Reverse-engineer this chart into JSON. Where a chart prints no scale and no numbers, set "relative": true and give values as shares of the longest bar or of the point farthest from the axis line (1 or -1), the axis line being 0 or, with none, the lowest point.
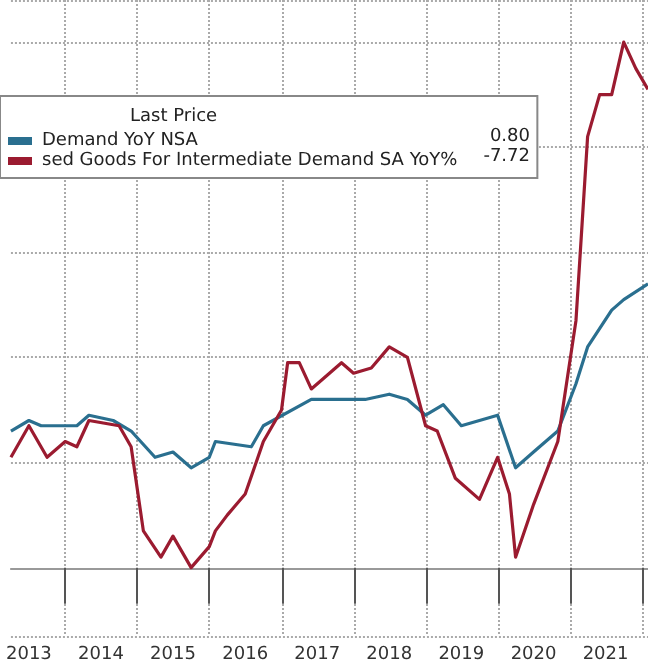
{
  "chart_data": {
    "type": "line",
    "relative": true,
    "legend": "top left",
    "legend_title": "Last Price",
    "grid": true,
    "annotations": [
      "0.80",
      "-7.72"
    ],
    "xlim": [
      "2013-04",
      "2022-02"
    ],
    "xticks": [
      {
        "value": "2013-07",
        "label": "2013"
      },
      {
        "value": "2014-01",
        "label": null
      },
      {
        "value": "2014-07",
        "label": "2014"
      },
      {
        "value": "2015-01",
        "label": null
      },
      {
        "value": "2015-07",
        "label": "2015"
      },
      {
        "value": "2016-01",
        "label": null
      },
      {
        "value": "2016-07",
        "label": "2016"
      },
      {
        "value": "2017-01",
        "label": null
      },
      {
        "value": "2017-07",
        "label": "2017"
      },
      {
        "value": "2018-01",
        "label": null
      },
      {
        "value": "2018-07",
        "label": "2018"
      },
      {
        "value": "2019-01",
        "label": null
      },
      {
        "value": "2019-07",
        "label": "2019"
      },
      {
        "value": "2020-01",
        "label": null
      },
      {
        "value": "2020-07",
        "label": "2020"
      },
      {
        "value": "2021-01",
        "label": null
      },
      {
        "value": "2021-07",
        "label": "2021"
      },
      {
        "value": "2022-01",
        "label": null
      }
    ],
    "series": [
      {
        "name": "Demand YoY NSA",
        "color": "#2a6f8f",
        "x": [
          "2013-04",
          "2013-07",
          "2013-09",
          "2014-03",
          "2014-05",
          "2014-09",
          "2014-12",
          "2015-04",
          "2015-07",
          "2015-10",
          "2016-01",
          "2016-02",
          "2016-08",
          "2016-10",
          "2017-06",
          "2017-11",
          "2018-03",
          "2018-07",
          "2018-10",
          "2019-01",
          "2019-04",
          "2019-07",
          "2020-01",
          "2020-04",
          "2020-07",
          "2020-11",
          "2021-02",
          "2021-04",
          "2021-08",
          "2021-10",
          "2022-02"
        ],
        "values": [
          0.26,
          0.28,
          0.27,
          0.27,
          0.29,
          0.28,
          0.26,
          0.21,
          0.22,
          0.19,
          0.21,
          0.24,
          0.23,
          0.27,
          0.32,
          0.32,
          0.32,
          0.33,
          0.32,
          0.29,
          0.31,
          0.27,
          0.29,
          0.19,
          0.22,
          0.26,
          0.35,
          0.42,
          0.49,
          0.51,
          0.54
        ]
      },
      {
        "name": "sed Goods For Intermediate Demand SA YoY%",
        "color": "#9b1b30",
        "x": [
          "2013-04",
          "2013-07",
          "2013-10",
          "2014-01",
          "2014-03",
          "2014-05",
          "2014-10",
          "2014-12",
          "2015-02",
          "2015-05",
          "2015-07",
          "2015-10",
          "2016-01",
          "2016-02",
          "2016-04",
          "2016-07",
          "2016-10",
          "2017-01",
          "2017-02",
          "2017-04",
          "2017-06",
          "2017-09",
          "2017-11",
          "2018-01",
          "2018-04",
          "2018-07",
          "2018-10",
          "2019-01",
          "2019-03",
          "2019-06",
          "2019-10",
          "2020-01",
          "2020-03",
          "2020-04",
          "2020-07",
          "2020-11",
          "2021-02",
          "2021-04",
          "2021-06",
          "2021-08",
          "2021-10",
          "2021-12",
          "2022-02"
        ],
        "values": [
          0.21,
          0.27,
          0.21,
          0.24,
          0.23,
          0.28,
          0.27,
          0.23,
          0.07,
          0.02,
          0.06,
          0,
          0.04,
          0.07,
          0.1,
          0.14,
          0.24,
          0.3,
          0.39,
          0.39,
          0.34,
          0.37,
          0.39,
          0.37,
          0.38,
          0.42,
          0.4,
          0.27,
          0.26,
          0.17,
          0.13,
          0.21,
          0.14,
          0.02,
          0.12,
          0.24,
          0.47,
          0.82,
          0.9,
          0.9,
          1.0,
          0.95,
          0.91
        ]
      }
    ]
  }
}
